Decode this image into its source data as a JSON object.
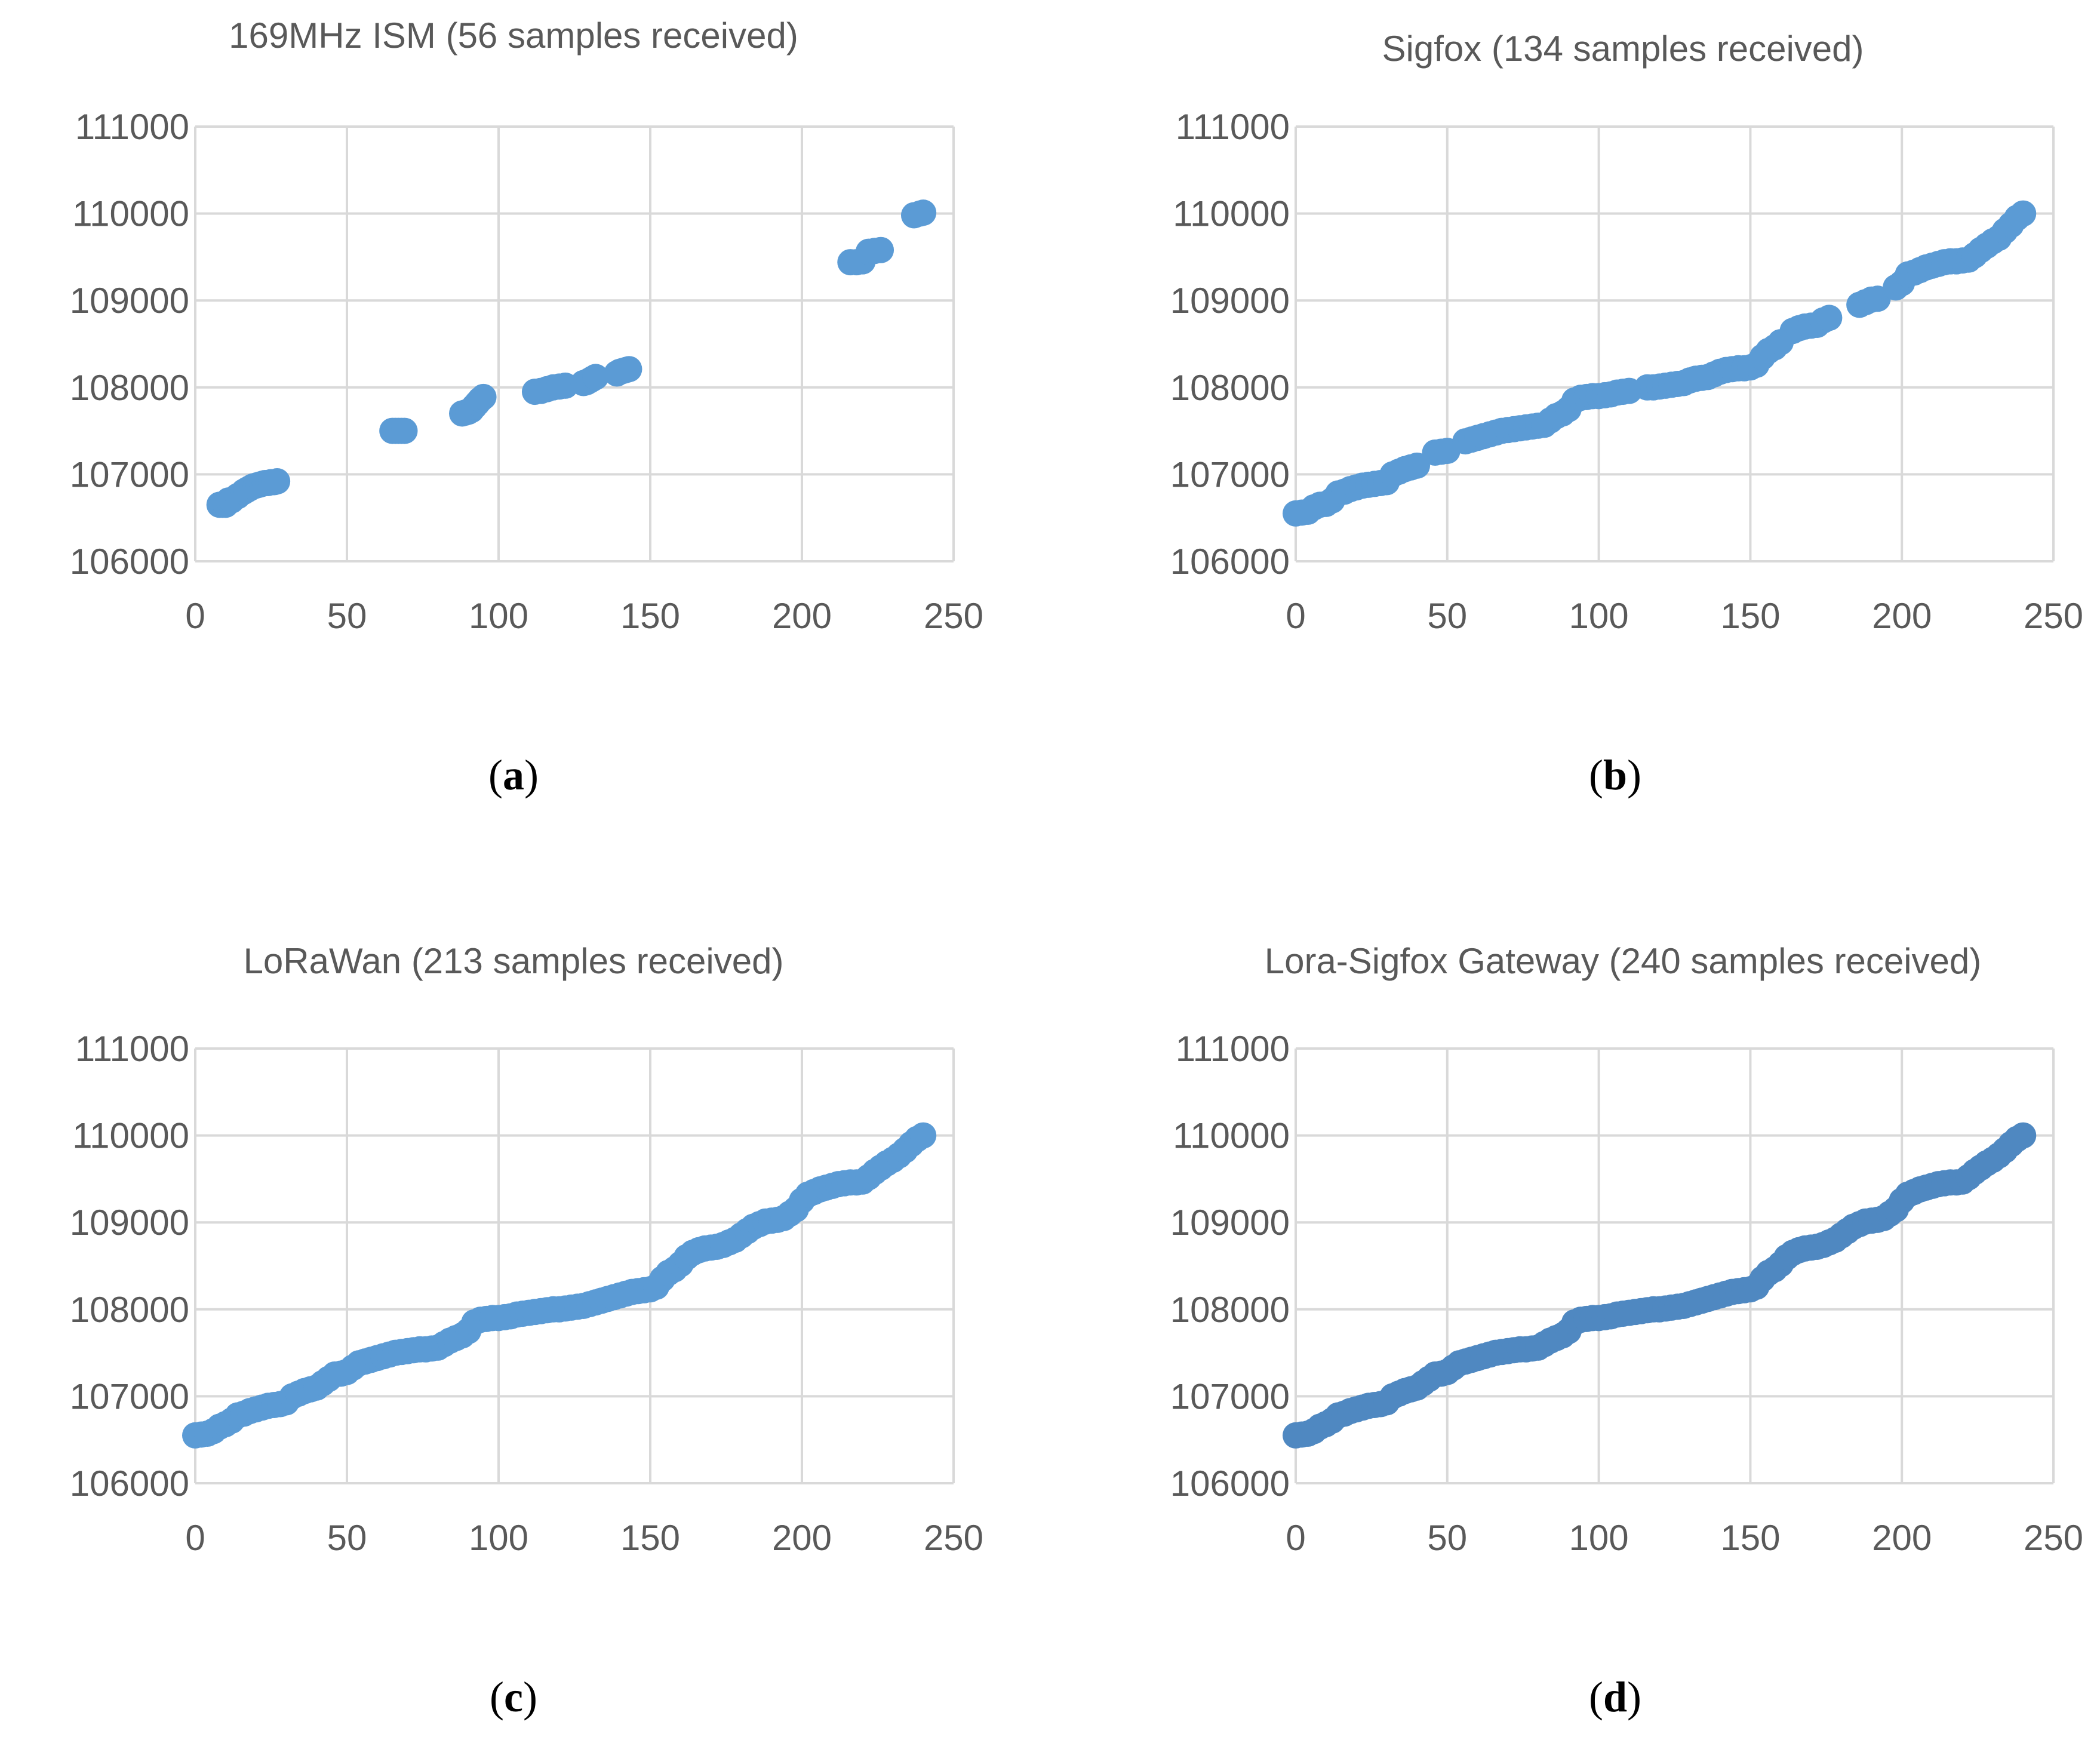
{
  "chart_data": [
    {
      "type": "scatter",
      "panel_label": "a",
      "title": "169MHz ISM (56 samples received)",
      "xlabel": "",
      "ylabel": "",
      "xlim": [
        0,
        250
      ],
      "ylim": [
        106000,
        111000
      ],
      "xticks": [
        0,
        50,
        100,
        150,
        200,
        250
      ],
      "yticks": [
        106000,
        107000,
        108000,
        109000,
        110000,
        111000
      ],
      "grid": true,
      "color": "#5B9BD5",
      "series": [
        {
          "name": "169MHz ISM",
          "x": [
            8,
            9,
            10,
            11,
            12,
            14,
            16,
            17,
            18,
            19,
            20,
            21,
            22,
            23,
            24,
            25,
            26,
            27,
            65,
            66,
            67,
            68,
            69,
            88,
            89,
            90,
            91,
            92,
            93,
            94,
            95,
            112,
            114,
            116,
            118,
            120,
            122,
            128,
            129,
            130,
            131,
            132,
            139,
            140,
            141,
            142,
            143,
            216,
            218,
            220,
            222,
            224,
            226,
            237,
            239,
            240
          ],
          "y": [
            106650,
            106650,
            106650,
            106700,
            106700,
            106750,
            106800,
            106820,
            106840,
            106860,
            106870,
            106880,
            106890,
            106900,
            106900,
            106910,
            106910,
            106920,
            107500,
            107500,
            107500,
            107500,
            107500,
            107700,
            107710,
            107720,
            107740,
            107780,
            107820,
            107860,
            107890,
            107950,
            107960,
            107980,
            108000,
            108010,
            108020,
            108050,
            108060,
            108080,
            108100,
            108120,
            108160,
            108180,
            108190,
            108200,
            108210,
            109440,
            109440,
            109450,
            109560,
            109570,
            109580,
            109980,
            110000,
            110010
          ]
        }
      ]
    },
    {
      "type": "scatter",
      "panel_label": "b",
      "title": "Sigfox (134 samples received)",
      "xlabel": "",
      "ylabel": "",
      "xlim": [
        0,
        250
      ],
      "ylim": [
        106000,
        111000
      ],
      "xticks": [
        0,
        50,
        100,
        150,
        200,
        250
      ],
      "yticks": [
        106000,
        107000,
        108000,
        109000,
        110000,
        111000
      ],
      "grid": true,
      "color": "#5B9BD5",
      "series": [
        {
          "name": "Sigfox",
          "x": [
            0,
            2,
            4,
            6,
            8,
            10,
            12,
            14,
            16,
            18,
            20,
            22,
            24,
            26,
            28,
            30,
            32,
            34,
            36,
            38,
            40,
            46,
            48,
            50,
            56,
            58,
            60,
            62,
            64,
            66,
            68,
            70,
            72,
            74,
            76,
            78,
            80,
            82,
            84,
            86,
            88,
            90,
            92,
            94,
            96,
            98,
            100,
            102,
            104,
            106,
            108,
            110,
            116,
            118,
            120,
            122,
            124,
            126,
            128,
            130,
            132,
            134,
            136,
            138,
            140,
            142,
            144,
            146,
            148,
            150,
            152,
            154,
            156,
            158,
            160,
            164,
            166,
            168,
            170,
            172,
            174,
            176,
            186,
            188,
            190,
            192,
            198,
            200,
            202,
            204,
            206,
            208,
            210,
            212,
            214,
            216,
            218,
            220,
            222,
            224,
            226,
            228,
            230,
            232,
            234,
            236,
            238,
            240
          ],
          "y": [
            106550,
            106560,
            106570,
            106620,
            106650,
            106660,
            106700,
            106780,
            106800,
            106830,
            106850,
            106870,
            106880,
            106890,
            106900,
            106910,
            107000,
            107030,
            107060,
            107080,
            107100,
            107250,
            107260,
            107270,
            107380,
            107400,
            107420,
            107440,
            107460,
            107480,
            107500,
            107510,
            107520,
            107530,
            107540,
            107550,
            107560,
            107570,
            107620,
            107670,
            107700,
            107750,
            107850,
            107880,
            107890,
            107900,
            107900,
            107910,
            107920,
            107940,
            107950,
            107960,
            108000,
            108000,
            108010,
            108020,
            108030,
            108040,
            108050,
            108080,
            108100,
            108110,
            108120,
            108150,
            108180,
            108200,
            108210,
            108220,
            108220,
            108230,
            108260,
            108350,
            108420,
            108460,
            108520,
            108650,
            108680,
            108700,
            108710,
            108720,
            108770,
            108800,
            108950,
            108980,
            109010,
            109020,
            109150,
            109200,
            109300,
            109320,
            109350,
            109380,
            109400,
            109420,
            109440,
            109450,
            109450,
            109460,
            109470,
            109520,
            109580,
            109630,
            109680,
            109720,
            109800,
            109870,
            109950,
            110000
          ]
        }
      ]
    },
    {
      "type": "scatter",
      "panel_label": "c",
      "title": "LoRaWan (213 samples received)",
      "xlabel": "",
      "ylabel": "",
      "xlim": [
        0,
        250
      ],
      "ylim": [
        106000,
        111000
      ],
      "xticks": [
        0,
        50,
        100,
        150,
        200,
        250
      ],
      "yticks": [
        106000,
        107000,
        108000,
        109000,
        110000,
        111000
      ],
      "grid": true,
      "color": "#5B9BD5",
      "series": [
        {
          "name": "LoRaWan",
          "x": [
            0,
            2,
            4,
            6,
            8,
            10,
            12,
            14,
            16,
            18,
            20,
            22,
            24,
            26,
            28,
            30,
            32,
            34,
            36,
            38,
            40,
            42,
            44,
            46,
            48,
            50,
            52,
            54,
            56,
            58,
            60,
            62,
            64,
            66,
            68,
            70,
            72,
            74,
            76,
            78,
            80,
            82,
            84,
            86,
            88,
            90,
            92,
            94,
            96,
            98,
            100,
            102,
            104,
            106,
            108,
            110,
            112,
            114,
            116,
            118,
            120,
            122,
            124,
            126,
            128,
            130,
            132,
            134,
            136,
            138,
            140,
            142,
            144,
            146,
            148,
            150,
            152,
            154,
            156,
            158,
            160,
            162,
            164,
            166,
            168,
            170,
            172,
            174,
            176,
            178,
            180,
            182,
            184,
            186,
            188,
            190,
            192,
            194,
            196,
            198,
            200,
            202,
            204,
            206,
            208,
            210,
            212,
            214,
            216,
            218,
            220,
            222,
            224,
            226,
            228,
            230,
            232,
            234,
            236,
            238,
            240
          ],
          "y": [
            106550,
            106560,
            106570,
            106600,
            106650,
            106680,
            106720,
            106780,
            106800,
            106830,
            106850,
            106870,
            106890,
            106900,
            106910,
            106930,
            107000,
            107030,
            107060,
            107080,
            107100,
            107150,
            107200,
            107250,
            107260,
            107280,
            107330,
            107380,
            107400,
            107420,
            107440,
            107460,
            107480,
            107500,
            107510,
            107520,
            107530,
            107540,
            107540,
            107550,
            107560,
            107600,
            107640,
            107670,
            107700,
            107750,
            107850,
            107880,
            107890,
            107900,
            107900,
            107910,
            107920,
            107940,
            107950,
            107960,
            107970,
            107980,
            107990,
            108000,
            108000,
            108010,
            108020,
            108030,
            108040,
            108060,
            108080,
            108100,
            108120,
            108140,
            108160,
            108180,
            108200,
            108210,
            108220,
            108230,
            108260,
            108350,
            108420,
            108460,
            108520,
            108600,
            108650,
            108680,
            108700,
            108710,
            108720,
            108740,
            108770,
            108800,
            108850,
            108900,
            108950,
            108980,
            109010,
            109020,
            109030,
            109050,
            109100,
            109150,
            109250,
            109320,
            109350,
            109380,
            109400,
            109420,
            109440,
            109450,
            109460,
            109460,
            109470,
            109520,
            109580,
            109630,
            109680,
            109720,
            109770,
            109830,
            109900,
            109960,
            110000
          ]
        }
      ]
    },
    {
      "type": "scatter",
      "panel_label": "d",
      "title": "Lora-Sigfox Gateway (240 samples received)",
      "xlabel": "",
      "ylabel": "",
      "xlim": [
        0,
        250
      ],
      "ylim": [
        106000,
        111000
      ],
      "xticks": [
        0,
        50,
        100,
        150,
        200,
        250
      ],
      "yticks": [
        106000,
        107000,
        108000,
        109000,
        110000,
        111000
      ],
      "grid": true,
      "color": "#4F88C1",
      "series": [
        {
          "name": "Lora-Sigfox Gateway",
          "x": [
            0,
            2,
            4,
            6,
            8,
            10,
            12,
            14,
            16,
            18,
            20,
            22,
            24,
            26,
            28,
            30,
            32,
            34,
            36,
            38,
            40,
            42,
            44,
            46,
            48,
            50,
            52,
            54,
            56,
            58,
            60,
            62,
            64,
            66,
            68,
            70,
            72,
            74,
            76,
            78,
            80,
            82,
            84,
            86,
            88,
            90,
            92,
            94,
            96,
            98,
            100,
            102,
            104,
            106,
            108,
            110,
            112,
            114,
            116,
            118,
            120,
            122,
            124,
            126,
            128,
            130,
            132,
            134,
            136,
            138,
            140,
            142,
            144,
            146,
            148,
            150,
            152,
            154,
            156,
            158,
            160,
            162,
            164,
            166,
            168,
            170,
            172,
            174,
            176,
            178,
            180,
            182,
            184,
            186,
            188,
            190,
            192,
            194,
            196,
            198,
            200,
            202,
            204,
            206,
            208,
            210,
            212,
            214,
            216,
            218,
            220,
            222,
            224,
            226,
            228,
            230,
            232,
            234,
            236,
            238,
            240
          ],
          "y": [
            106550,
            106560,
            106570,
            106600,
            106650,
            106680,
            106720,
            106780,
            106800,
            106830,
            106850,
            106870,
            106890,
            106900,
            106910,
            106930,
            107000,
            107030,
            107060,
            107080,
            107100,
            107150,
            107200,
            107250,
            107260,
            107280,
            107330,
            107380,
            107400,
            107420,
            107440,
            107460,
            107480,
            107500,
            107510,
            107520,
            107530,
            107540,
            107540,
            107550,
            107560,
            107600,
            107640,
            107670,
            107700,
            107750,
            107850,
            107880,
            107890,
            107900,
            107900,
            107910,
            107920,
            107940,
            107950,
            107960,
            107970,
            107980,
            107990,
            108000,
            108000,
            108010,
            108020,
            108030,
            108040,
            108060,
            108080,
            108100,
            108120,
            108140,
            108160,
            108180,
            108200,
            108210,
            108220,
            108230,
            108260,
            108350,
            108420,
            108460,
            108520,
            108600,
            108650,
            108680,
            108700,
            108710,
            108720,
            108740,
            108770,
            108800,
            108850,
            108900,
            108950,
            108980,
            109010,
            109020,
            109030,
            109050,
            109100,
            109150,
            109250,
            109320,
            109350,
            109380,
            109400,
            109420,
            109440,
            109450,
            109460,
            109460,
            109470,
            109520,
            109580,
            109630,
            109680,
            109720,
            109770,
            109830,
            109900,
            109960,
            110000
          ]
        }
      ]
    }
  ]
}
